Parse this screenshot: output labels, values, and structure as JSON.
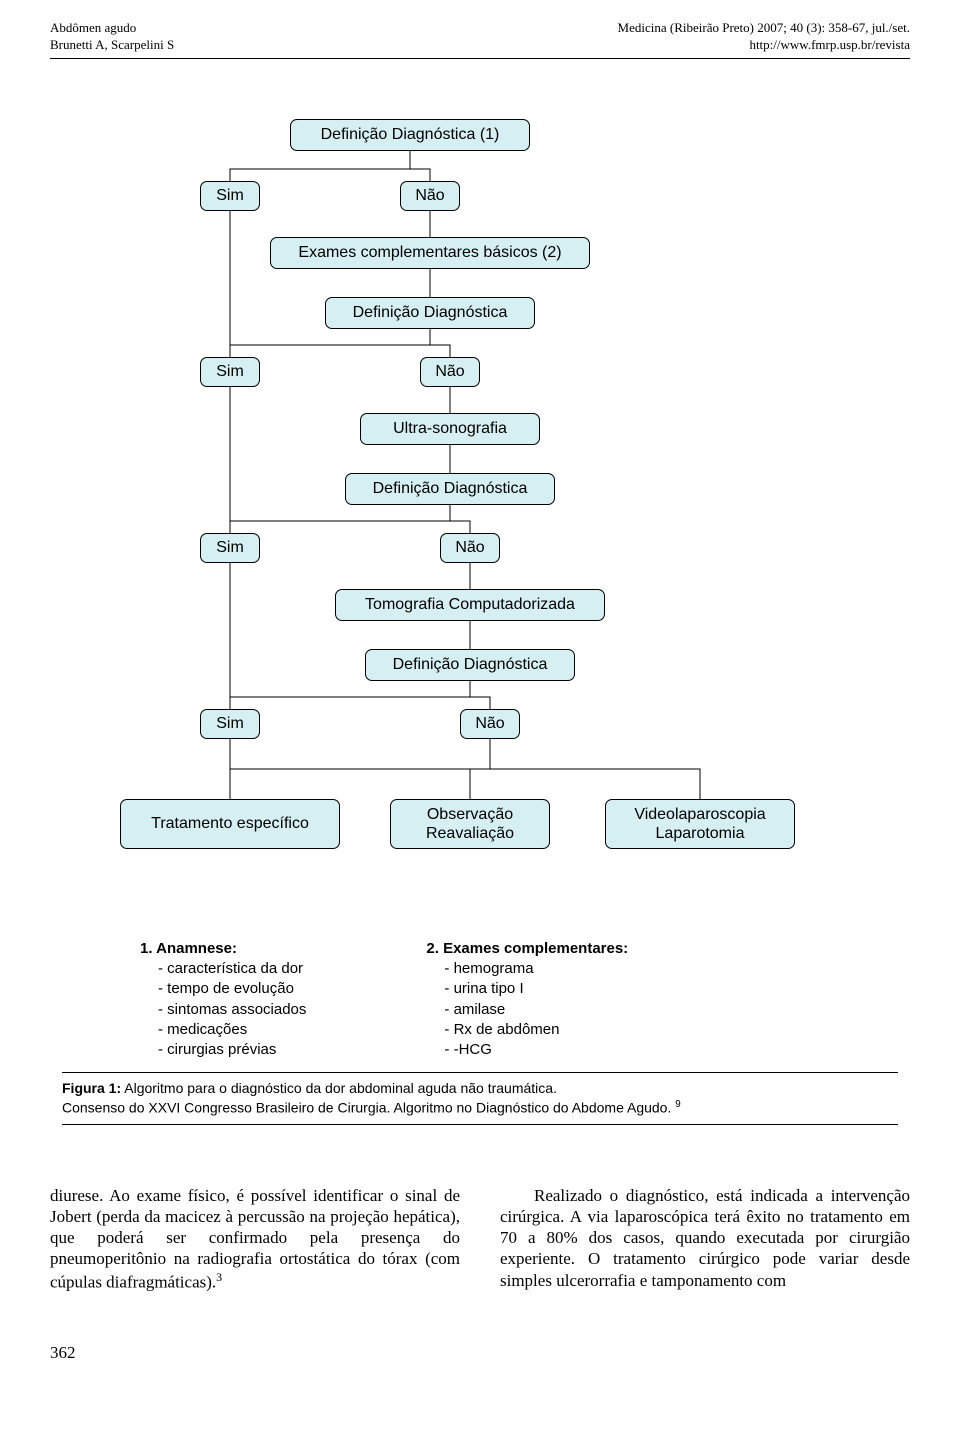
{
  "header": {
    "left1": "Abdômen agudo",
    "left2": "Brunetti A, Scarpelini S",
    "right1": "Medicina (Ribeirão Preto) 2007; 40 (3): 358-67, jul./set.",
    "right2": "http://www.fmrp.usp.br/revista"
  },
  "flowchart": {
    "node_fill": "#d6eff2",
    "node_stroke": "#000000",
    "line_stroke": "#000000",
    "labels": {
      "n1": "Definição Diagnóstica (1)",
      "n2": "Exames complementares básicos (2)",
      "n3": "Definição Diagnóstica",
      "n4": "Ultra-sonografia",
      "n5": "Definição Diagnóstica",
      "n6": "Tomografia Computadorizada",
      "n7": "Definição Diagnóstica",
      "sim": "Sim",
      "nao": "Não",
      "out1": "Tratamento específico",
      "out2a": "Observação",
      "out2b": "Reavaliação",
      "out3a": "Videolaparoscopia",
      "out3b": "Laparotomia"
    }
  },
  "legend": {
    "col1_title": "1. Anamnese:",
    "col1_items": "- característica da dor\n- tempo de evolução\n- sintomas associados\n- medicações\n- cirurgias prévias",
    "col2_title": "2. Exames complementares:",
    "col2_items": "- hemograma\n- urina tipo I\n- amilase\n- Rx de abdômen\n-  -HCG"
  },
  "caption": {
    "line1": "Figura 1: Algoritmo para o diagnóstico da dor abdominal aguda não traumática.",
    "line2_a": "Consenso do XXVI Congresso Brasileiro de Cirurgia. Algoritmo no Diagnóstico do Abdome Agudo. ",
    "line2_sup": "9"
  },
  "body": {
    "left_a": "diurese. Ao exame físico, é possível identificar o sinal de Jobert (perda da macicez à percussão na projeção hepática), que poderá ser confirmado pela presença do pneumoperitônio na radiografia ortostática do tórax (com cúpulas diafragmáticas).",
    "left_sup": "3",
    "right": "Realizado o diagnóstico, está indicada a intervenção cirúrgica. A via laparoscópica terá êxito no tratamento em 70 a 80% dos casos, quando executada por cirurgião experiente. O tratamento cirúrgico pode variar desde simples ulcerorrafia e tamponamento com"
  },
  "page_number": "362"
}
